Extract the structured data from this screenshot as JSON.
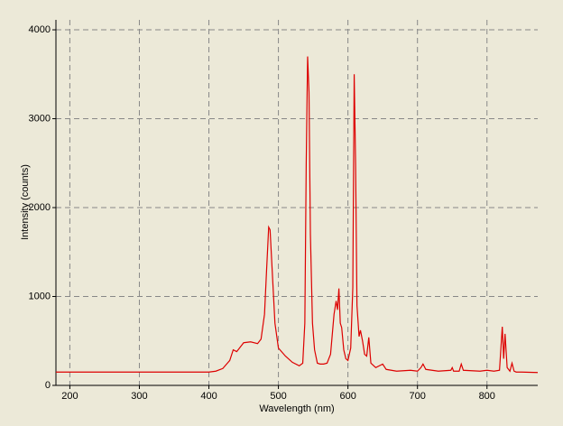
{
  "chart_data": {
    "type": "line",
    "xlabel": "Wavelength (nm)",
    "ylabel": "Intensity (counts)",
    "x": [
      180,
      400,
      410,
      420,
      430,
      435,
      440,
      450,
      460,
      470,
      475,
      480,
      483,
      486,
      488,
      491,
      495,
      500,
      510,
      520,
      530,
      535,
      538,
      540,
      542,
      544,
      546,
      549,
      552,
      556,
      560,
      565,
      570,
      575,
      580,
      583,
      585,
      587,
      589,
      591,
      594,
      597,
      600,
      604,
      607,
      609,
      611,
      613,
      616,
      618,
      621,
      624,
      627,
      630,
      633,
      640,
      650,
      655,
      670,
      690,
      700,
      705,
      708,
      712,
      730,
      748,
      750,
      752,
      760,
      763,
      766,
      790,
      800,
      810,
      818,
      822,
      824,
      826,
      829,
      833,
      836,
      839,
      842,
      850,
      873
    ],
    "values": [
      150,
      150,
      160,
      190,
      280,
      400,
      380,
      480,
      490,
      470,
      520,
      800,
      1300,
      1780,
      1750,
      1300,
      700,
      420,
      330,
      260,
      220,
      250,
      700,
      2500,
      3700,
      3300,
      1700,
      700,
      400,
      250,
      240,
      240,
      250,
      350,
      800,
      950,
      850,
      1090,
      700,
      650,
      400,
      300,
      280,
      420,
      1100,
      3500,
      2500,
      900,
      550,
      620,
      500,
      350,
      330,
      540,
      250,
      200,
      240,
      180,
      160,
      170,
      160,
      200,
      240,
      180,
      160,
      170,
      200,
      160,
      160,
      240,
      170,
      160,
      170,
      160,
      170,
      660,
      300,
      580,
      200,
      160,
      250,
      160,
      150,
      150,
      145
    ],
    "color": "#dd0000",
    "xlim": [
      180,
      873
    ],
    "ylim": [
      0,
      4112
    ],
    "xticks": [
      200,
      300,
      400,
      500,
      600,
      700,
      800
    ],
    "yticks": [
      0,
      1000,
      2000,
      3000,
      4000
    ],
    "grid": true
  }
}
